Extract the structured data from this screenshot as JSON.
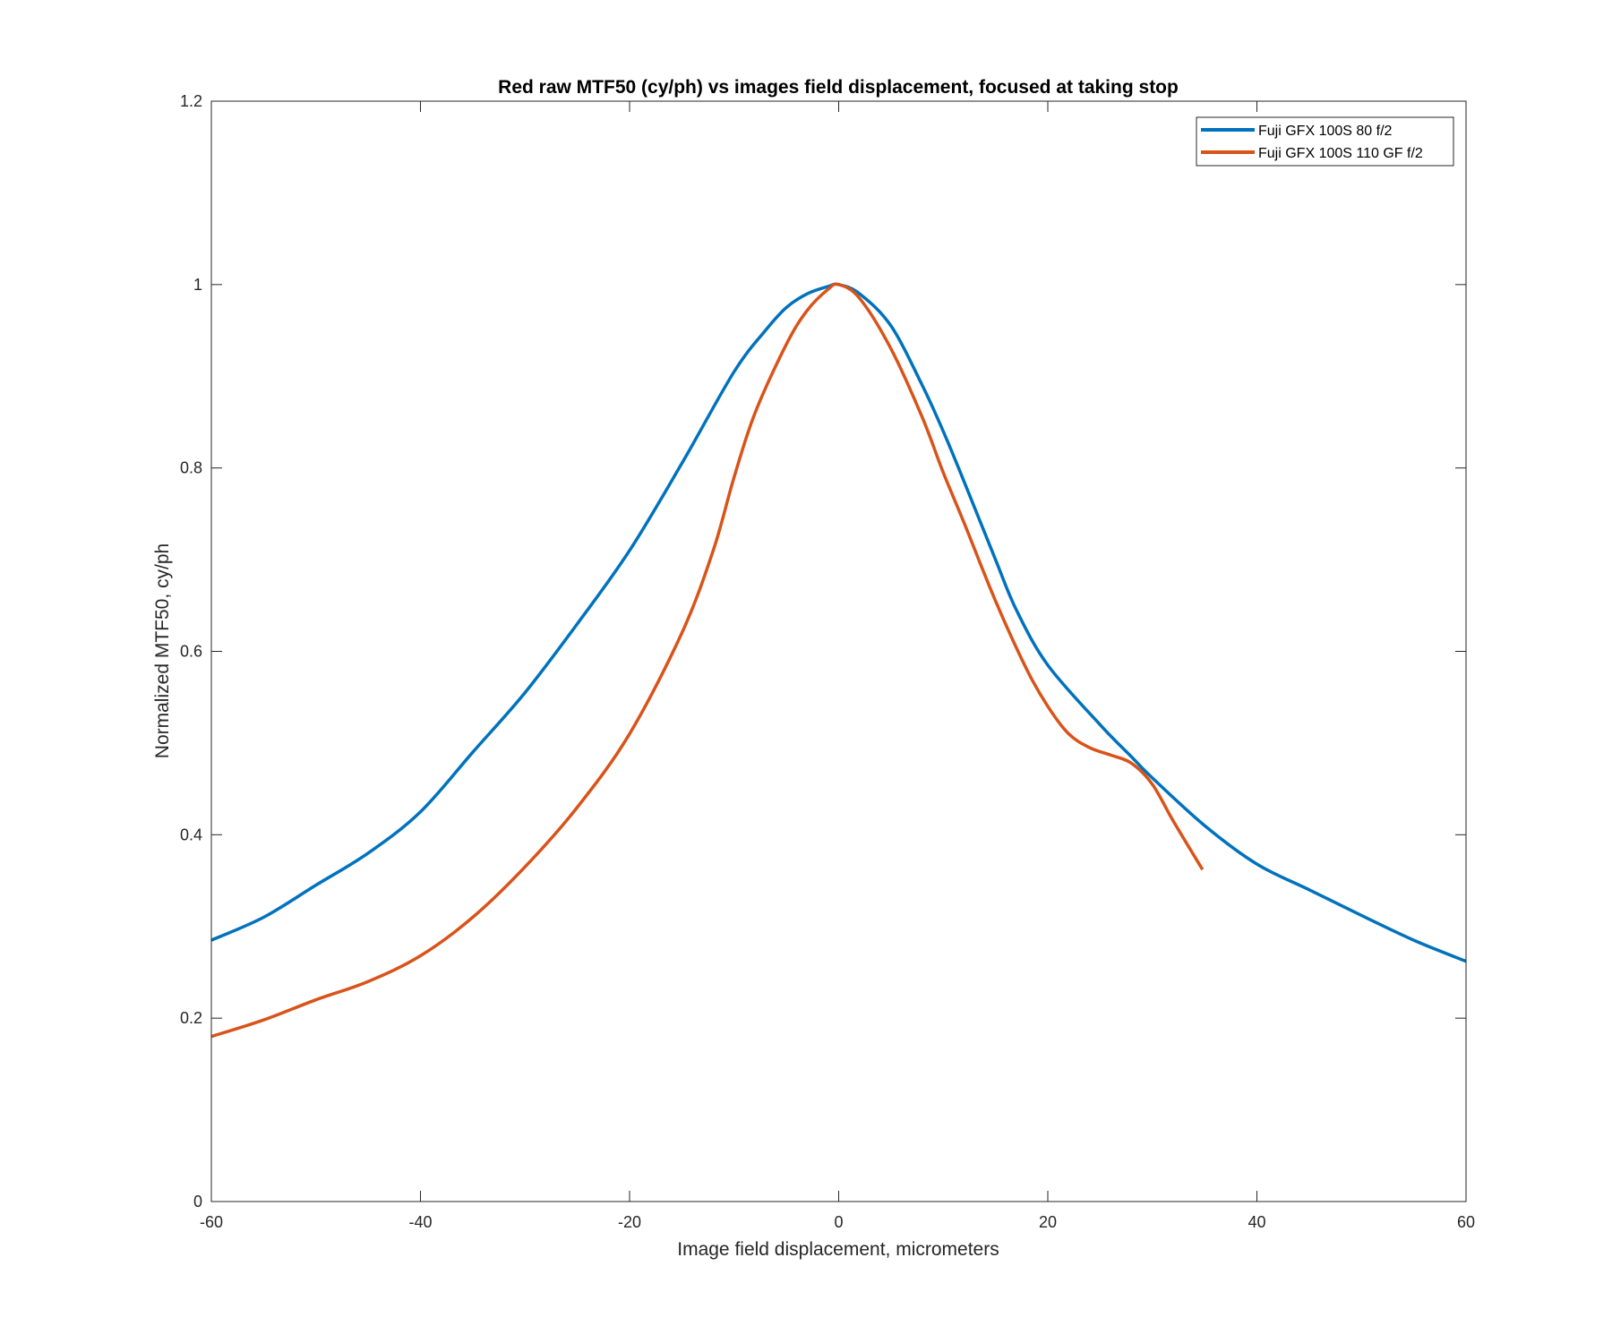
{
  "chart_data": {
    "type": "line",
    "title": "Red raw MTF50 (cy/ph) vs images field displacement, focused at taking stop",
    "xlabel": "Image field displacement, micrometers",
    "ylabel": "Normalized MTF50, cy/ph",
    "xlim": [
      -60,
      60
    ],
    "ylim": [
      0,
      1.2
    ],
    "xticks": [
      -60,
      -40,
      -20,
      0,
      20,
      40,
      60
    ],
    "yticks": [
      0,
      0.2,
      0.4,
      0.6,
      0.8,
      1,
      1.2
    ],
    "xtick_labels": [
      "-60",
      "-40",
      "-20",
      "0",
      "20",
      "40",
      "60"
    ],
    "ytick_labels": [
      "0",
      "0.2",
      "0.4",
      "0.6",
      "0.8",
      "1",
      "1.2"
    ],
    "grid": false,
    "legend_position": "top-right",
    "series": [
      {
        "name": "Fuji GFX 100S 80 f/2",
        "color": "#0072BD",
        "x": [
          -60,
          -55,
          -50,
          -45,
          -40,
          -35,
          -30,
          -25,
          -20,
          -15,
          -10,
          -7,
          -5,
          -3,
          -1,
          0,
          2,
          5,
          8,
          10,
          12,
          15,
          17,
          20,
          25,
          28,
          30,
          35,
          40,
          45,
          50,
          55,
          60
        ],
        "y": [
          0.285,
          0.31,
          0.345,
          0.38,
          0.425,
          0.49,
          0.555,
          0.63,
          0.71,
          0.805,
          0.905,
          0.95,
          0.975,
          0.99,
          0.998,
          1.0,
          0.99,
          0.955,
          0.89,
          0.84,
          0.785,
          0.7,
          0.645,
          0.585,
          0.52,
          0.485,
          0.462,
          0.41,
          0.368,
          0.34,
          0.312,
          0.285,
          0.262
        ]
      },
      {
        "name": "Fuji GFX 100S 110 GF f/2",
        "color": "#D95319",
        "x": [
          -60,
          -55,
          -50,
          -45,
          -40,
          -35,
          -30,
          -25,
          -20,
          -15,
          -12,
          -10,
          -8,
          -5,
          -3,
          -1,
          0,
          2,
          5,
          8,
          10,
          12,
          15,
          18,
          20,
          22,
          24,
          26,
          28,
          30,
          32,
          34.8
        ],
        "y": [
          0.18,
          0.198,
          0.22,
          0.24,
          0.268,
          0.31,
          0.365,
          0.43,
          0.51,
          0.62,
          0.71,
          0.79,
          0.86,
          0.935,
          0.972,
          0.995,
          1.0,
          0.985,
          0.93,
          0.855,
          0.795,
          0.74,
          0.655,
          0.58,
          0.54,
          0.51,
          0.495,
          0.487,
          0.478,
          0.455,
          0.415,
          0.362
        ]
      }
    ]
  }
}
